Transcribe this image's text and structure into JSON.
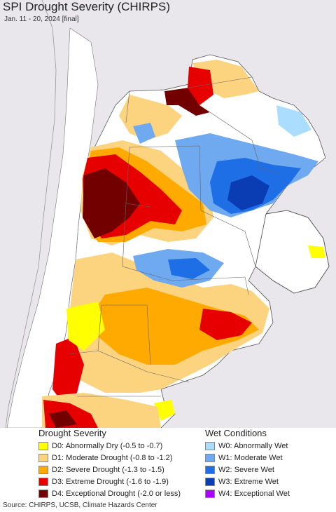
{
  "header": {
    "title": "SPI Drought Severity (CHIRPS)",
    "subtitle": "Jan. 11 - 20, 2024 [final]"
  },
  "legend": {
    "drought_heading": "Drought Severity",
    "wet_heading": "Wet Conditions",
    "drought_items": [
      {
        "label": "D0: Abnormally Dry (-0.5 to -0.7)",
        "color": "#ffff00"
      },
      {
        "label": "D1: Moderate Drought (-0.8 to -1.2)",
        "color": "#fcd37f"
      },
      {
        "label": "D2: Severe Drought (-1.3 to -1.5)",
        "color": "#ffaa00"
      },
      {
        "label": "D3: Extreme Drought (-1.6 to -1.9)",
        "color": "#e60000"
      },
      {
        "label": "D4: Exceptional Drought (-2.0 or less)",
        "color": "#730000"
      }
    ],
    "wet_items": [
      {
        "label": "W0: Abnormally Wet",
        "color": "#aaddff"
      },
      {
        "label": "W1: Moderate Wet",
        "color": "#6faaf0"
      },
      {
        "label": "W2: Severe Wet",
        "color": "#1e6ee6"
      },
      {
        "label": "W3: Extreme Wet",
        "color": "#0a3cb4"
      },
      {
        "label": "W4: Exceptional Wet",
        "color": "#aa00ff"
      }
    ]
  },
  "footer": {
    "source": "Source: CHIRPS, UCSB, Climate Hazards Center"
  },
  "map": {
    "background_color": "#e9e7ec",
    "land_color": "#ffffff",
    "border_color": "#555555"
  }
}
